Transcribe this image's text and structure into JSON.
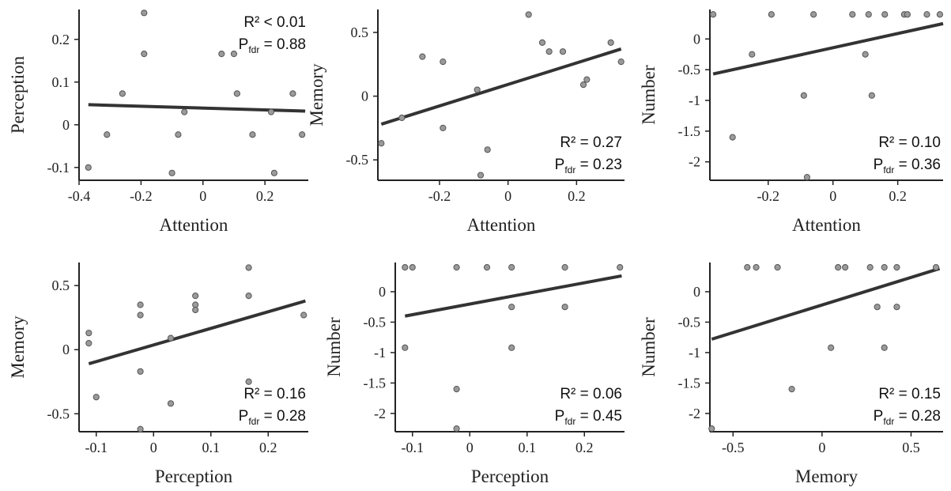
{
  "colors": {
    "axis": "#222222",
    "point_fill": "#9a9a9a",
    "point_stroke": "#555555",
    "fit_line": "#333333"
  },
  "chart_data": [
    {
      "type": "scatter",
      "xlabel": "Attention",
      "ylabel": "Perception",
      "xlim": [
        -0.4,
        0.34
      ],
      "ylim": [
        -0.13,
        0.27
      ],
      "xticks": [
        -0.4,
        -0.2,
        0,
        0.2
      ],
      "xtick_labels": [
        "-0.4",
        "-0.2",
        "0",
        "0.2"
      ],
      "yticks": [
        -0.1,
        0,
        0.1,
        0.2
      ],
      "ytick_labels": [
        "-0.1",
        "0",
        "0.1",
        "0.2"
      ],
      "points": [
        [
          -0.37,
          -0.1
        ],
        [
          -0.31,
          -0.023
        ],
        [
          -0.26,
          0.073
        ],
        [
          -0.19,
          0.262
        ],
        [
          -0.19,
          0.166
        ],
        [
          -0.1,
          -0.113
        ],
        [
          -0.08,
          -0.023
        ],
        [
          -0.06,
          0.03
        ],
        [
          0.06,
          0.166
        ],
        [
          0.1,
          0.166
        ],
        [
          0.11,
          0.073
        ],
        [
          0.16,
          -0.023
        ],
        [
          0.22,
          0.03
        ],
        [
          0.23,
          -0.113
        ],
        [
          0.29,
          0.073
        ],
        [
          0.32,
          -0.023
        ]
      ],
      "fit": [
        [
          -0.37,
          0.047
        ],
        [
          0.33,
          0.032
        ]
      ],
      "stats": {
        "r2": "R² < 0.01",
        "p_main": "P",
        "p_sub": "fdr",
        "p_value": " = 0.88"
      },
      "stats_position": "top-right"
    },
    {
      "type": "scatter",
      "xlabel": "Attention",
      "ylabel": "Memory",
      "xlim": [
        -0.38,
        0.34
      ],
      "ylim": [
        -0.66,
        0.68
      ],
      "xticks": [
        -0.2,
        0,
        0.2
      ],
      "xtick_labels": [
        "-0.2",
        "0",
        "0.2"
      ],
      "yticks": [
        -0.5,
        0,
        0.5
      ],
      "ytick_labels": [
        "-0.5",
        "0",
        "0.5"
      ],
      "points": [
        [
          -0.37,
          -0.37
        ],
        [
          -0.31,
          -0.17
        ],
        [
          -0.25,
          0.31
        ],
        [
          -0.19,
          0.27
        ],
        [
          -0.19,
          -0.25
        ],
        [
          -0.09,
          0.05
        ],
        [
          -0.08,
          -0.62
        ],
        [
          -0.06,
          -0.42
        ],
        [
          0.06,
          0.64
        ],
        [
          0.1,
          0.42
        ],
        [
          0.12,
          0.35
        ],
        [
          0.16,
          0.35
        ],
        [
          0.22,
          0.09
        ],
        [
          0.23,
          0.13
        ],
        [
          0.3,
          0.42
        ],
        [
          0.33,
          0.27
        ]
      ],
      "fit": [
        [
          -0.37,
          -0.22
        ],
        [
          0.33,
          0.37
        ]
      ],
      "stats": {
        "r2": "R² = 0.27",
        "p_main": "P",
        "p_sub": "fdr",
        "p_value": " = 0.23"
      },
      "stats_position": "bottom-right"
    },
    {
      "type": "scatter",
      "xlabel": "Attention",
      "ylabel": "Number",
      "xlim": [
        -0.38,
        0.34
      ],
      "ylim": [
        -2.3,
        0.48
      ],
      "xticks": [
        -0.2,
        0,
        0.2
      ],
      "xtick_labels": [
        "-0.2",
        "0",
        "0.2"
      ],
      "yticks": [
        -2,
        -1.5,
        -1,
        -0.5,
        0
      ],
      "ytick_labels": [
        "-2",
        "-1.5",
        "-1",
        "-0.5",
        "0"
      ],
      "points": [
        [
          -0.37,
          0.4
        ],
        [
          -0.31,
          -1.6
        ],
        [
          -0.25,
          -0.25
        ],
        [
          -0.19,
          0.4
        ],
        [
          -0.09,
          -0.92
        ],
        [
          -0.08,
          -2.25
        ],
        [
          -0.06,
          0.4
        ],
        [
          0.06,
          0.4
        ],
        [
          0.1,
          -0.25
        ],
        [
          0.11,
          0.4
        ],
        [
          0.12,
          -0.92
        ],
        [
          0.16,
          0.4
        ],
        [
          0.22,
          0.4
        ],
        [
          0.23,
          0.4
        ],
        [
          0.29,
          0.4
        ],
        [
          0.33,
          0.4
        ]
      ],
      "fit": [
        [
          -0.37,
          -0.57
        ],
        [
          0.34,
          0.25
        ]
      ],
      "stats": {
        "r2": "R² = 0.10",
        "p_main": "P",
        "p_sub": "fdr",
        "p_value": " = 0.36"
      },
      "stats_position": "bottom-right"
    },
    {
      "type": "scatter",
      "xlabel": "Perception",
      "ylabel": "Memory",
      "xlim": [
        -0.13,
        0.27
      ],
      "ylim": [
        -0.64,
        0.68
      ],
      "xticks": [
        -0.1,
        0,
        0.1,
        0.2
      ],
      "xtick_labels": [
        "-0.1",
        "0",
        "0.1",
        "0.2"
      ],
      "yticks": [
        -0.5,
        0,
        0.5
      ],
      "ytick_labels": [
        "-0.5",
        "0",
        "0.5"
      ],
      "points": [
        [
          -0.113,
          0.13
        ],
        [
          -0.113,
          0.05
        ],
        [
          -0.1,
          -0.37
        ],
        [
          -0.023,
          0.35
        ],
        [
          -0.023,
          0.27
        ],
        [
          -0.023,
          -0.17
        ],
        [
          -0.023,
          -0.62
        ],
        [
          0.03,
          0.09
        ],
        [
          0.03,
          -0.42
        ],
        [
          0.073,
          0.42
        ],
        [
          0.073,
          0.35
        ],
        [
          0.073,
          0.31
        ],
        [
          0.166,
          0.64
        ],
        [
          0.166,
          0.42
        ],
        [
          0.166,
          -0.25
        ],
        [
          0.262,
          0.27
        ]
      ],
      "fit": [
        [
          -0.113,
          -0.11
        ],
        [
          0.265,
          0.38
        ]
      ],
      "stats": {
        "r2": "R² = 0.16",
        "p_main": "P",
        "p_sub": "fdr",
        "p_value": " = 0.28"
      },
      "stats_position": "bottom-right"
    },
    {
      "type": "scatter",
      "xlabel": "Perception",
      "ylabel": "Number",
      "xlim": [
        -0.13,
        0.27
      ],
      "ylim": [
        -2.3,
        0.48
      ],
      "xticks": [
        -0.1,
        0,
        0.1,
        0.2
      ],
      "xtick_labels": [
        "-0.1",
        "0",
        "0.1",
        "0.2"
      ],
      "yticks": [
        -2,
        -1.5,
        -1,
        -0.5,
        0
      ],
      "ytick_labels": [
        "-2",
        "-1.5",
        "-1",
        "-0.5",
        "0"
      ],
      "points": [
        [
          -0.113,
          0.4
        ],
        [
          -0.113,
          -0.92
        ],
        [
          -0.1,
          0.4
        ],
        [
          -0.023,
          0.4
        ],
        [
          -0.023,
          -1.6
        ],
        [
          -0.023,
          -2.25
        ],
        [
          0.03,
          0.4
        ],
        [
          0.073,
          0.4
        ],
        [
          0.073,
          -0.25
        ],
        [
          0.073,
          -0.92
        ],
        [
          0.166,
          0.4
        ],
        [
          0.166,
          -0.25
        ],
        [
          0.262,
          0.4
        ]
      ],
      "fit": [
        [
          -0.113,
          -0.4
        ],
        [
          0.265,
          0.26
        ]
      ],
      "stats": {
        "r2": "R² = 0.06",
        "p_main": "P",
        "p_sub": "fdr",
        "p_value": " = 0.45"
      },
      "stats_position": "bottom-right"
    },
    {
      "type": "scatter",
      "xlabel": "Memory",
      "ylabel": "Number",
      "xlim": [
        -0.63,
        0.68
      ],
      "ylim": [
        -2.3,
        0.48
      ],
      "xticks": [
        -0.5,
        0,
        0.5
      ],
      "xtick_labels": [
        "-0.5",
        "0",
        "0.5"
      ],
      "yticks": [
        -2,
        -1.5,
        -1,
        -0.5,
        0
      ],
      "ytick_labels": [
        "-2",
        "-1.5",
        "-1",
        "-0.5",
        "0"
      ],
      "points": [
        [
          -0.62,
          -2.25
        ],
        [
          -0.42,
          0.4
        ],
        [
          -0.37,
          0.4
        ],
        [
          -0.25,
          0.4
        ],
        [
          -0.17,
          -1.6
        ],
        [
          0.05,
          -0.92
        ],
        [
          0.09,
          0.4
        ],
        [
          0.13,
          0.4
        ],
        [
          0.27,
          0.4
        ],
        [
          0.31,
          -0.25
        ],
        [
          0.35,
          0.4
        ],
        [
          0.35,
          -0.92
        ],
        [
          0.42,
          0.4
        ],
        [
          0.42,
          -0.25
        ],
        [
          0.64,
          0.4
        ]
      ],
      "fit": [
        [
          -0.62,
          -0.78
        ],
        [
          0.66,
          0.38
        ]
      ],
      "stats": {
        "r2": "R² = 0.15",
        "p_main": "P",
        "p_sub": "fdr",
        "p_value": " = 0.28"
      },
      "stats_position": "bottom-right"
    }
  ]
}
